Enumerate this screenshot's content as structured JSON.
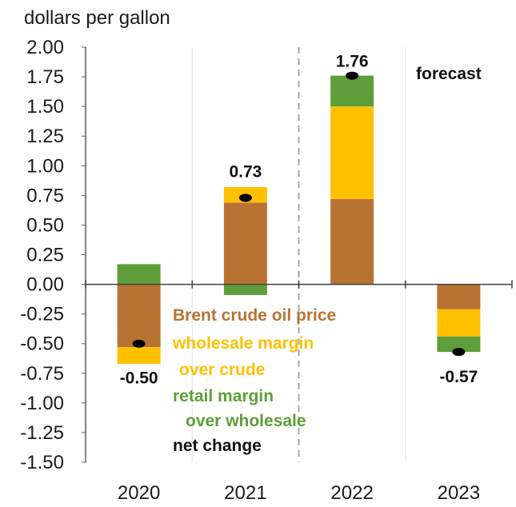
{
  "chart_data": {
    "type": "bar",
    "stacked": true,
    "ylabel": "dollars per gallon",
    "ylim": [
      -1.5,
      2.0
    ],
    "yticks": [
      "2.00",
      "1.75",
      "1.50",
      "1.25",
      "1.00",
      "0.75",
      "0.50",
      "0.25",
      "0.00",
      "-0.25",
      "-0.50",
      "-0.75",
      "-1.00",
      "-1.25",
      "-1.50"
    ],
    "categories": [
      "2020",
      "2021",
      "2022",
      "2023"
    ],
    "series": [
      {
        "name": "Brent crude oil price",
        "color": "#B87333",
        "values": [
          -0.53,
          0.69,
          0.72,
          -0.21
        ]
      },
      {
        "name": "wholesale margin over crude",
        "color": "#FFC000",
        "values": [
          -0.14,
          0.13,
          0.78,
          -0.23
        ]
      },
      {
        "name": "retail margin over wholesale",
        "color": "#5E9E3A",
        "values": [
          0.17,
          -0.09,
          0.26,
          -0.13
        ]
      }
    ],
    "net_change": {
      "name": "net change",
      "color": "#000000",
      "values": [
        -0.5,
        0.73,
        1.76,
        -0.57
      ],
      "labels": [
        "-0.50",
        "0.73",
        "1.76",
        "-0.57"
      ]
    },
    "forecast_label": "forecast",
    "legend": {
      "placement": "center-bottom",
      "lines": [
        {
          "text": "Brent crude oil price",
          "color": "#B87333"
        },
        {
          "text": "wholesale margin",
          "color": "#FFC000"
        },
        {
          "text": "over crude",
          "color": "#FFC000"
        },
        {
          "text": "retail margin",
          "color": "#5E9E3A"
        },
        {
          "text": "over wholesale",
          "color": "#5E9E3A"
        },
        {
          "text": "net change",
          "color": "#111111"
        }
      ]
    },
    "grid": true
  }
}
